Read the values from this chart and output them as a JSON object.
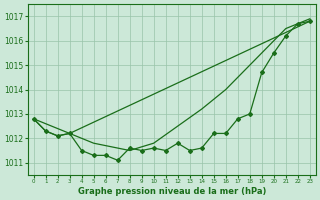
{
  "xlabel": "Graphe pression niveau de la mer (hPa)",
  "background_color": "#cce8d8",
  "grid_color": "#99c4aa",
  "line_color": "#1a6e1a",
  "xlim": [
    -0.5,
    23.5
  ],
  "ylim": [
    1010.5,
    1017.5
  ],
  "yticks": [
    1011,
    1012,
    1013,
    1014,
    1015,
    1016,
    1017
  ],
  "xticks": [
    0,
    1,
    2,
    3,
    4,
    5,
    6,
    7,
    8,
    9,
    10,
    11,
    12,
    13,
    14,
    15,
    16,
    17,
    18,
    19,
    20,
    21,
    22,
    23
  ],
  "line1_x": [
    0,
    1,
    2,
    3,
    4,
    5,
    6,
    7,
    8,
    9,
    10,
    11,
    12,
    13,
    14,
    15,
    16,
    17,
    18,
    19,
    20,
    21,
    22,
    23
  ],
  "line1_y": [
    1012.8,
    1012.3,
    1012.1,
    1012.2,
    1011.5,
    1011.3,
    1011.3,
    1011.1,
    1011.6,
    1011.5,
    1011.6,
    1011.5,
    1011.8,
    1011.5,
    1011.6,
    1012.2,
    1012.2,
    1012.8,
    1013.0,
    1014.7,
    1015.5,
    1016.2,
    1016.7,
    1016.8
  ],
  "line2_x": [
    0,
    1,
    2,
    3,
    23
  ],
  "line2_y": [
    1012.8,
    1012.3,
    1012.1,
    1012.2,
    1016.8
  ],
  "line3_x": [
    0,
    3,
    5,
    8,
    10,
    12,
    14,
    16,
    18,
    19,
    20,
    21,
    22,
    23
  ],
  "line3_y": [
    1012.8,
    1012.2,
    1011.8,
    1011.5,
    1011.8,
    1012.5,
    1013.2,
    1014.0,
    1015.0,
    1015.5,
    1016.0,
    1016.5,
    1016.7,
    1016.9
  ]
}
